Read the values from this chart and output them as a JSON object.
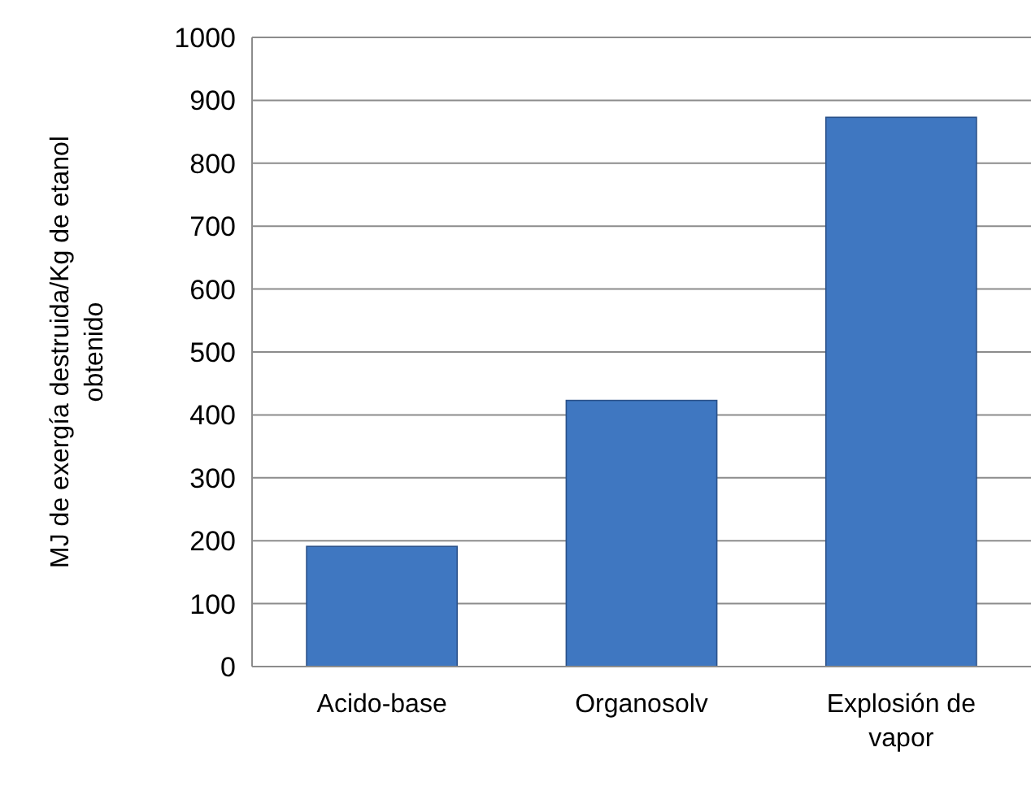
{
  "chart_data": {
    "type": "bar",
    "ylabel": "MJ de exergía destruida/Kg de etanol obtenido",
    "categories": [
      "Acido-base",
      "Organosolv",
      "Explosión de vapor"
    ],
    "values": [
      191,
      423,
      873
    ],
    "color": "#3f77c1",
    "ylim": [
      0,
      1000
    ],
    "yticks": [
      0,
      100,
      200,
      300,
      400,
      500,
      600,
      700,
      800,
      900,
      1000
    ],
    "grid": "y"
  }
}
